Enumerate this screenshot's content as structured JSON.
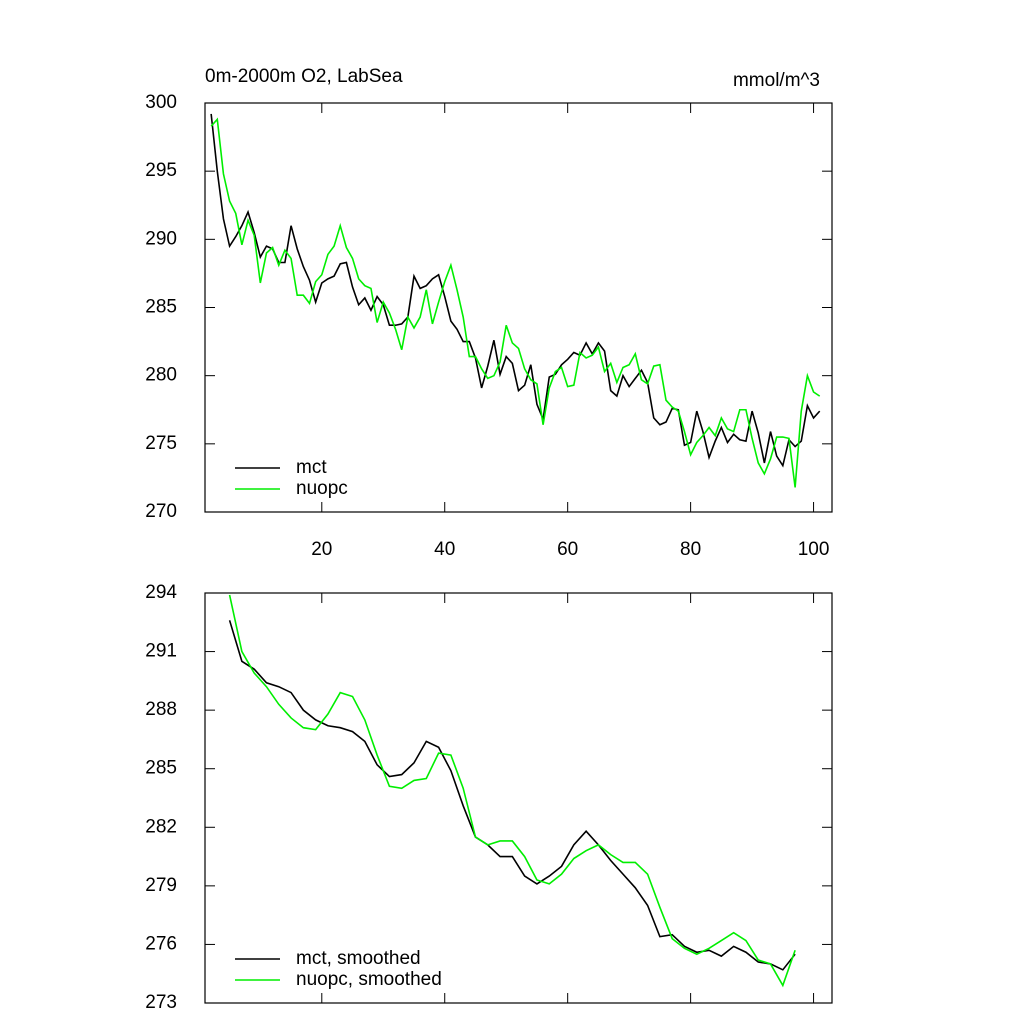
{
  "chart_data": [
    {
      "type": "line",
      "left_title": "0m-2000m O2, LabSea",
      "right_title": "mmol/m^3",
      "x": [
        2,
        3,
        4,
        5,
        6,
        7,
        8,
        9,
        10,
        11,
        12,
        13,
        14,
        15,
        16,
        17,
        18,
        19,
        20,
        21,
        22,
        23,
        24,
        25,
        26,
        27,
        28,
        29,
        30,
        31,
        32,
        33,
        34,
        35,
        36,
        37,
        38,
        39,
        40,
        41,
        42,
        43,
        44,
        45,
        46,
        47,
        48,
        49,
        50,
        51,
        52,
        53,
        54,
        55,
        56,
        57,
        58,
        59,
        60,
        61,
        62,
        63,
        64,
        65,
        66,
        67,
        68,
        69,
        70,
        71,
        72,
        73,
        74,
        75,
        76,
        77,
        78,
        79,
        80,
        81,
        82,
        83,
        84,
        85,
        86,
        87,
        88,
        89,
        90,
        91,
        92,
        93,
        94,
        95,
        96,
        97,
        98,
        99,
        100,
        101
      ],
      "series": [
        {
          "name": "mct",
          "color": "#000000",
          "values": [
            299.2,
            295,
            291.5,
            289.5,
            290.2,
            291,
            292,
            290.5,
            288.7,
            289.5,
            289.3,
            288.3,
            288.3,
            291,
            289.3,
            288,
            287,
            285.4,
            286.8,
            287.1,
            287.3,
            288.2,
            288.3,
            286.5,
            285.2,
            285.7,
            284.8,
            285.8,
            285.2,
            283.7,
            283.7,
            283.8,
            284.3,
            287.3,
            286.4,
            286.6,
            287.1,
            287.4,
            285.8,
            284,
            283.4,
            282.5,
            282.5,
            281.3,
            279.1,
            280.7,
            282.6,
            280.1,
            281.4,
            280.9,
            278.9,
            279.3,
            280.8,
            277.9,
            276.8,
            279.9,
            280.1,
            280.8,
            281.2,
            281.7,
            281.5,
            282.4,
            281.6,
            282.4,
            281.8,
            278.9,
            278.5,
            280,
            279.2,
            279.8,
            280.4,
            279.5,
            276.9,
            276.4,
            276.6,
            277.6,
            277.5,
            274.9,
            275.1,
            277.4,
            275.9,
            274,
            275.2,
            276.2,
            275.1,
            275.7,
            275.3,
            275.2,
            277.4,
            275.8,
            273.6,
            275.9,
            274.1,
            273.4,
            275.3,
            274.8,
            275.2,
            277.8,
            276.9,
            277.4
          ]
        },
        {
          "name": "nuopc",
          "color": "#00ee00",
          "values": [
            298.3,
            298.8,
            294.8,
            292.8,
            291.9,
            289.6,
            291.4,
            290.3,
            286.8,
            289,
            289.4,
            288.1,
            289.2,
            288.6,
            285.9,
            285.9,
            285.3,
            286.9,
            287.4,
            288.9,
            289.5,
            291,
            289.4,
            288.6,
            287.1,
            286.6,
            286.4,
            283.9,
            285.4,
            284.6,
            283.4,
            281.9,
            284.3,
            283.5,
            284.3,
            286.3,
            283.8,
            285.4,
            286.9,
            288.1,
            286.3,
            284.3,
            281.4,
            281.4,
            280.5,
            279.8,
            280,
            281,
            283.7,
            282.4,
            282,
            280.5,
            279.7,
            279.4,
            276.4,
            279.1,
            280.3,
            280.6,
            279.2,
            279.3,
            281.7,
            281.3,
            281.5,
            282.1,
            280.3,
            280.9,
            279.5,
            280.6,
            280.8,
            281.6,
            279.7,
            279.4,
            280.7,
            280.8,
            278.2,
            277.7,
            277.4,
            275.9,
            274.2,
            275.1,
            275.6,
            276.2,
            275.6,
            276.9,
            276.1,
            275.9,
            277.5,
            277.5,
            275.4,
            273.6,
            272.8,
            273.9,
            275.5,
            275.5,
            275.4,
            271.8,
            277.4,
            280,
            278.8,
            278.5
          ]
        }
      ],
      "xlim": [
        1,
        103
      ],
      "ylim": [
        270,
        300
      ],
      "xticks": [
        20,
        40,
        60,
        80,
        100
      ],
      "xtick_labels_shown": true,
      "yticks": [
        270,
        275,
        280,
        285,
        290,
        295,
        300
      ],
      "legend": "lower left"
    },
    {
      "type": "line",
      "x": [
        5,
        7,
        9,
        11,
        13,
        15,
        17,
        19,
        21,
        23,
        25,
        27,
        29,
        31,
        33,
        35,
        37,
        39,
        41,
        43,
        45,
        47,
        49,
        51,
        53,
        55,
        57,
        59,
        61,
        63,
        65,
        67,
        69,
        71,
        73,
        75,
        77,
        79,
        81,
        83,
        85,
        87,
        89,
        91,
        93,
        95,
        97
      ],
      "series": [
        {
          "name": "mct, smoothed",
          "color": "#000000",
          "values": [
            292.6,
            290.5,
            290.1,
            289.4,
            289.2,
            288.9,
            288,
            287.5,
            287.2,
            287.1,
            286.9,
            286.4,
            285.2,
            284.6,
            284.7,
            285.3,
            286.4,
            286.1,
            284.9,
            283.1,
            281.5,
            281.1,
            280.5,
            280.5,
            279.5,
            279.1,
            279.5,
            280,
            281.1,
            281.8,
            281.1,
            280.3,
            279.6,
            278.9,
            278,
            276.4,
            276.5,
            275.9,
            275.6,
            275.7,
            275.4,
            275.9,
            275.6,
            275.1,
            275,
            274.7,
            275.5
          ]
        },
        {
          "name": "nuopc, smoothed",
          "color": "#00ee00",
          "values": [
            293.9,
            291,
            289.9,
            289.2,
            288.3,
            287.6,
            287.1,
            287,
            287.8,
            288.9,
            288.7,
            287.5,
            285.7,
            284.1,
            284,
            284.4,
            284.5,
            285.8,
            285.7,
            284,
            281.5,
            281.1,
            281.3,
            281.3,
            280.5,
            279.3,
            279.1,
            279.6,
            280.4,
            280.8,
            281.1,
            280.6,
            280.2,
            280.2,
            279.6,
            277.9,
            276.3,
            275.8,
            275.5,
            275.8,
            276.2,
            276.6,
            276.2,
            275.2,
            275,
            273.9,
            275.7
          ]
        }
      ],
      "xlim": [
        1,
        103
      ],
      "ylim": [
        273,
        294
      ],
      "xticks": [
        20,
        40,
        60,
        80,
        100
      ],
      "xtick_labels_shown": false,
      "yticks": [
        273,
        276,
        279,
        282,
        285,
        288,
        291,
        294
      ],
      "legend": "lower left"
    }
  ]
}
